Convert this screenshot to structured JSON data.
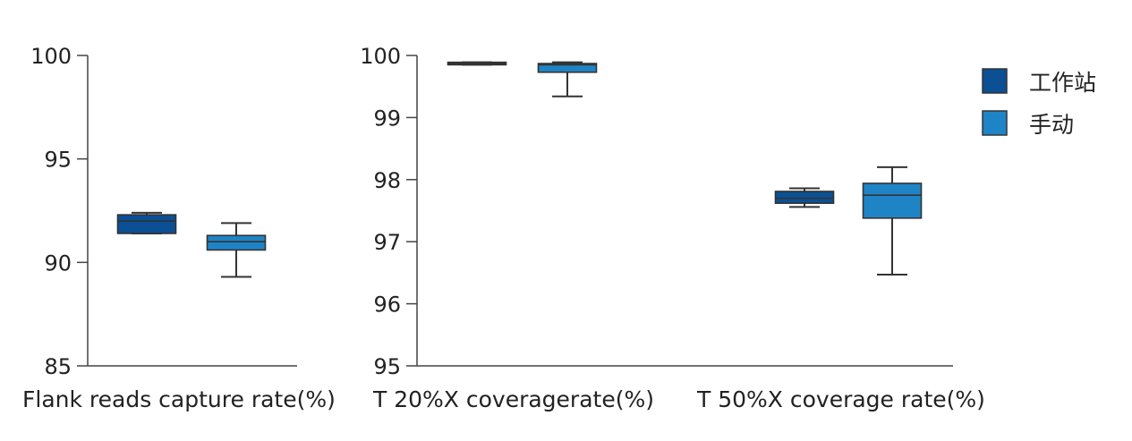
{
  "colors": {
    "workstation": "#0b4f95",
    "manual": "#1f84c6"
  },
  "chart_data": [
    {
      "type": "box",
      "xlabel": "Flank reads capture rate(%)",
      "ylim": [
        85,
        100
      ],
      "yticks": [
        85,
        90,
        95,
        100
      ],
      "series": [
        {
          "name": "工作站",
          "min": 91.4,
          "q1": 91.4,
          "median": 92.0,
          "q3": 92.3,
          "max": 92.4
        },
        {
          "name": "手动",
          "min": 89.3,
          "q1": 90.6,
          "median": 91.0,
          "q3": 91.3,
          "max": 91.9
        }
      ]
    },
    {
      "type": "box",
      "xlabel": "T 20%X coveragerate(%)",
      "ylim": [
        95,
        100
      ],
      "yticks": [
        95,
        96,
        97,
        98,
        99,
        100
      ],
      "series": [
        {
          "name": "工作站",
          "min": 99.85,
          "q1": 99.85,
          "median": 99.87,
          "q3": 99.89,
          "max": 99.89
        },
        {
          "name": "手动",
          "min": 99.34,
          "q1": 99.73,
          "median": 99.85,
          "q3": 99.87,
          "max": 99.89
        }
      ]
    },
    {
      "type": "box",
      "xlabel": "T 50%X coverage rate(%)",
      "ylim": [
        95,
        100
      ],
      "series": [
        {
          "name": "工作站",
          "min": 97.56,
          "q1": 97.62,
          "median": 97.7,
          "q3": 97.81,
          "max": 97.86
        },
        {
          "name": "手动",
          "min": 96.47,
          "q1": 97.38,
          "median": 97.75,
          "q3": 97.94,
          "max": 98.2
        }
      ]
    }
  ],
  "legend": {
    "position": "top-right",
    "items": [
      {
        "label": "工作站",
        "color": "#0b4f95"
      },
      {
        "label": "手动",
        "color": "#1f84c6"
      }
    ]
  }
}
